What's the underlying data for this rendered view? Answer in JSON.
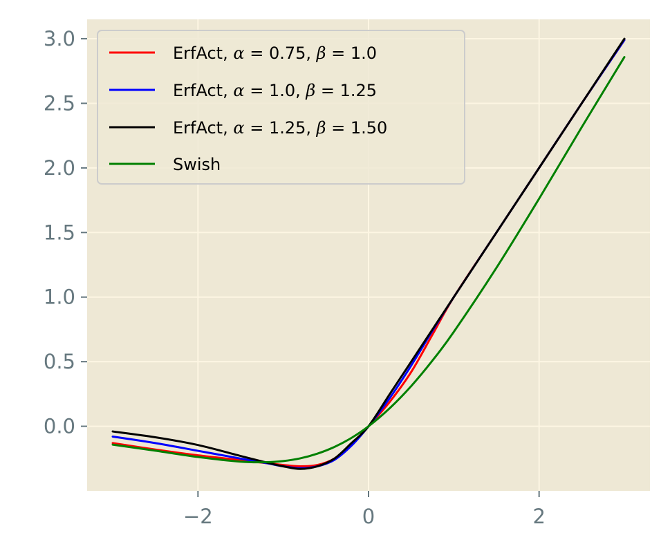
{
  "chart_data": {
    "type": "line",
    "title": "",
    "xlabel": "",
    "ylabel": "",
    "xlim": [
      -3.3,
      3.3
    ],
    "ylim": [
      -0.5,
      3.15
    ],
    "grid": true,
    "legend_placement": "upper-left",
    "colors": {
      "background": "#eee8d5",
      "grid": "#fdf6e3",
      "tick": "#66787f",
      "legend_frame": "#cccccc"
    },
    "xticks": [
      -2,
      0,
      2
    ],
    "xtick_labels": [
      "−2",
      "0",
      "2"
    ],
    "yticks": [
      0.0,
      0.5,
      1.0,
      1.5,
      2.0,
      2.5,
      3.0
    ],
    "ytick_labels": [
      "0.0",
      "0.5",
      "1.0",
      "1.5",
      "2.0",
      "2.5",
      "3.0"
    ],
    "x": [
      -3.0,
      -2.5,
      -2.0,
      -1.5,
      -1.2,
      -1.0,
      -0.8,
      -0.6,
      -0.4,
      -0.2,
      0.0,
      0.25,
      0.5,
      0.75,
      1.0,
      1.5,
      2.0,
      2.5,
      3.0
    ],
    "series": [
      {
        "name": "ErfAct, α = 0.75, β = 1.0",
        "label_parts": {
          "prefix": "ErfAct, ",
          "alpha": "0.75",
          "beta": "1.0"
        },
        "color": "#ff0000",
        "values": [
          -0.13,
          -0.18,
          -0.225,
          -0.262,
          -0.285,
          -0.3,
          -0.31,
          -0.3,
          -0.25,
          -0.14,
          0.0,
          0.19,
          0.42,
          0.71,
          1.0,
          1.5,
          2.0,
          2.5,
          2.99
        ]
      },
      {
        "name": "ErfAct, α = 1.0, β = 1.25",
        "label_parts": {
          "prefix": "ErfAct, ",
          "alpha": "1.0",
          "beta": "1.25"
        },
        "color": "#0000ff",
        "values": [
          -0.08,
          -0.13,
          -0.19,
          -0.25,
          -0.285,
          -0.31,
          -0.325,
          -0.31,
          -0.26,
          -0.15,
          0.0,
          0.22,
          0.47,
          0.74,
          1.0,
          1.5,
          2.0,
          2.5,
          2.99
        ]
      },
      {
        "name": "ErfAct, α = 1.25, β = 1.50",
        "label_parts": {
          "prefix": "ErfAct, ",
          "alpha": "1.25",
          "beta": "1.50"
        },
        "color": "#000000",
        "values": [
          -0.04,
          -0.085,
          -0.145,
          -0.23,
          -0.28,
          -0.31,
          -0.33,
          -0.31,
          -0.25,
          -0.13,
          0.0,
          0.25,
          0.5,
          0.75,
          1.0,
          1.5,
          2.0,
          2.5,
          3.0
        ]
      },
      {
        "name": "Swish",
        "color": "#008000",
        "values": [
          -0.142,
          -0.189,
          -0.238,
          -0.274,
          -0.278,
          -0.269,
          -0.248,
          -0.212,
          -0.16,
          -0.09,
          0.0,
          0.141,
          0.311,
          0.509,
          0.731,
          1.227,
          1.762,
          2.315,
          2.858
        ]
      }
    ]
  }
}
